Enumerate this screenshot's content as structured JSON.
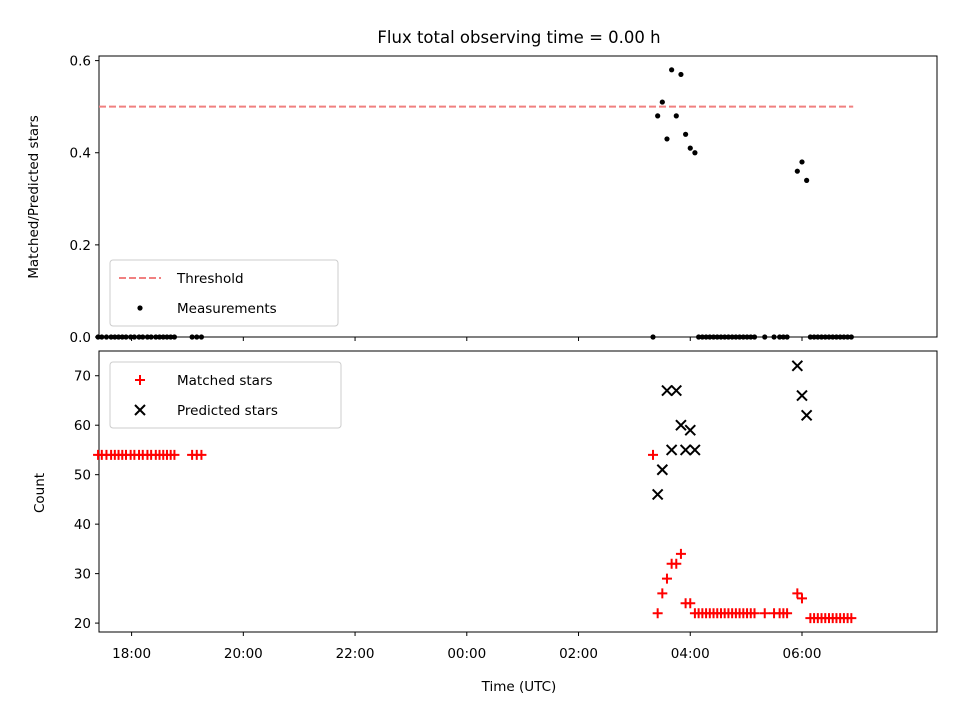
{
  "chart_data": {
    "title": "Flux total observing time = 0.00 h",
    "xlabel": "Time (UTC)",
    "x_ticks": [
      "18:00",
      "20:00",
      "22:00",
      "00:00",
      "02:00",
      "04:00",
      "06:00"
    ],
    "xlim": [
      "17:25",
      "08:25"
    ],
    "panels": [
      {
        "type": "scatter",
        "ylabel": "Matched/Predicted stars",
        "ylim": [
          0,
          0.61
        ],
        "y_ticks": [
          "0.0",
          "0.2",
          "0.4",
          "0.6"
        ],
        "legend_position": "lower-left",
        "series": [
          {
            "name": "Threshold",
            "kind": "line",
            "style": "dashed",
            "color": "#f08080",
            "x": [
              "17:25",
              "06:55"
            ],
            "y": [
              0.5,
              0.5
            ]
          },
          {
            "name": "Measurements",
            "kind": "scatter",
            "marker": "dot",
            "color": "#000000",
            "x": [
              "17:24",
              "17:28",
              "17:33",
              "17:38",
              "17:42",
              "17:46",
              "17:50",
              "17:54",
              "17:59",
              "18:03",
              "18:08",
              "18:12",
              "18:17",
              "18:21",
              "18:26",
              "18:30",
              "18:34",
              "18:38",
              "18:42",
              "18:46",
              "19:05",
              "19:10",
              "19:15",
              "03:20",
              "03:25",
              "03:30",
              "03:35",
              "03:40",
              "03:45",
              "03:50",
              "03:55",
              "04:00",
              "04:05",
              "04:09",
              "04:13",
              "04:17",
              "04:21",
              "04:25",
              "04:29",
              "04:33",
              "04:37",
              "04:41",
              "04:45",
              "04:49",
              "04:53",
              "04:57",
              "05:01",
              "05:05",
              "05:09",
              "05:20",
              "05:30",
              "05:36",
              "05:40",
              "05:44",
              "05:55",
              "06:00",
              "06:05",
              "06:09",
              "06:13",
              "06:17",
              "06:21",
              "06:25",
              "06:29",
              "06:33",
              "06:37",
              "06:41",
              "06:45",
              "06:49",
              "06:53"
            ],
            "y": [
              0,
              0,
              0,
              0,
              0,
              0,
              0,
              0,
              0,
              0,
              0,
              0,
              0,
              0,
              0,
              0,
              0,
              0,
              0,
              0,
              0,
              0,
              0,
              0,
              0.48,
              0.51,
              0.43,
              0.58,
              0.48,
              0.57,
              0.44,
              0.41,
              0.4,
              0,
              0,
              0,
              0,
              0,
              0,
              0,
              0,
              0,
              0,
              0,
              0,
              0,
              0,
              0,
              0,
              0,
              0,
              0,
              0,
              0,
              0.36,
              0.38,
              0.34,
              0,
              0,
              0,
              0,
              0,
              0,
              0,
              0,
              0,
              0,
              0,
              0
            ]
          }
        ]
      },
      {
        "type": "scatter",
        "ylabel": "Count",
        "ylim": [
          18.2,
          75
        ],
        "y_ticks": [
          "20",
          "30",
          "40",
          "50",
          "60",
          "70"
        ],
        "legend_position": "upper-left",
        "series": [
          {
            "name": "Matched stars",
            "kind": "scatter",
            "marker": "plus",
            "color": "#ff0000",
            "x": [
              "17:24",
              "17:28",
              "17:33",
              "17:38",
              "17:42",
              "17:46",
              "17:50",
              "17:54",
              "17:59",
              "18:03",
              "18:08",
              "18:12",
              "18:17",
              "18:21",
              "18:26",
              "18:30",
              "18:34",
              "18:38",
              "18:42",
              "18:46",
              "19:05",
              "19:10",
              "19:15",
              "03:20",
              "03:25",
              "03:30",
              "03:35",
              "03:40",
              "03:45",
              "03:50",
              "03:55",
              "04:00",
              "04:05",
              "04:09",
              "04:13",
              "04:17",
              "04:21",
              "04:25",
              "04:29",
              "04:33",
              "04:37",
              "04:41",
              "04:45",
              "04:49",
              "04:53",
              "04:57",
              "05:01",
              "05:05",
              "05:09",
              "05:20",
              "05:30",
              "05:36",
              "05:40",
              "05:44",
              "05:55",
              "06:00",
              "06:09",
              "06:13",
              "06:17",
              "06:21",
              "06:25",
              "06:29",
              "06:33",
              "06:37",
              "06:41",
              "06:45",
              "06:49",
              "06:53"
            ],
            "y": [
              54,
              54,
              54,
              54,
              54,
              54,
              54,
              54,
              54,
              54,
              54,
              54,
              54,
              54,
              54,
              54,
              54,
              54,
              54,
              54,
              54,
              54,
              54,
              54,
              22,
              26,
              29,
              32,
              32,
              34,
              24,
              24,
              22,
              22,
              22,
              22,
              22,
              22,
              22,
              22,
              22,
              22,
              22,
              22,
              22,
              22,
              22,
              22,
              22,
              22,
              22,
              22,
              22,
              22,
              26,
              25,
              21,
              21,
              21,
              21,
              21,
              21,
              21,
              21,
              21,
              21,
              21,
              21
            ]
          },
          {
            "name": "Predicted stars",
            "kind": "scatter",
            "marker": "x",
            "color": "#000000",
            "x": [
              "03:25",
              "03:30",
              "03:35",
              "03:40",
              "03:45",
              "03:50",
              "03:55",
              "04:00",
              "04:05",
              "05:55",
              "06:00",
              "06:05"
            ],
            "y": [
              46,
              51,
              67,
              55,
              67,
              60,
              55,
              59,
              55,
              72,
              66,
              62
            ]
          }
        ]
      }
    ]
  }
}
